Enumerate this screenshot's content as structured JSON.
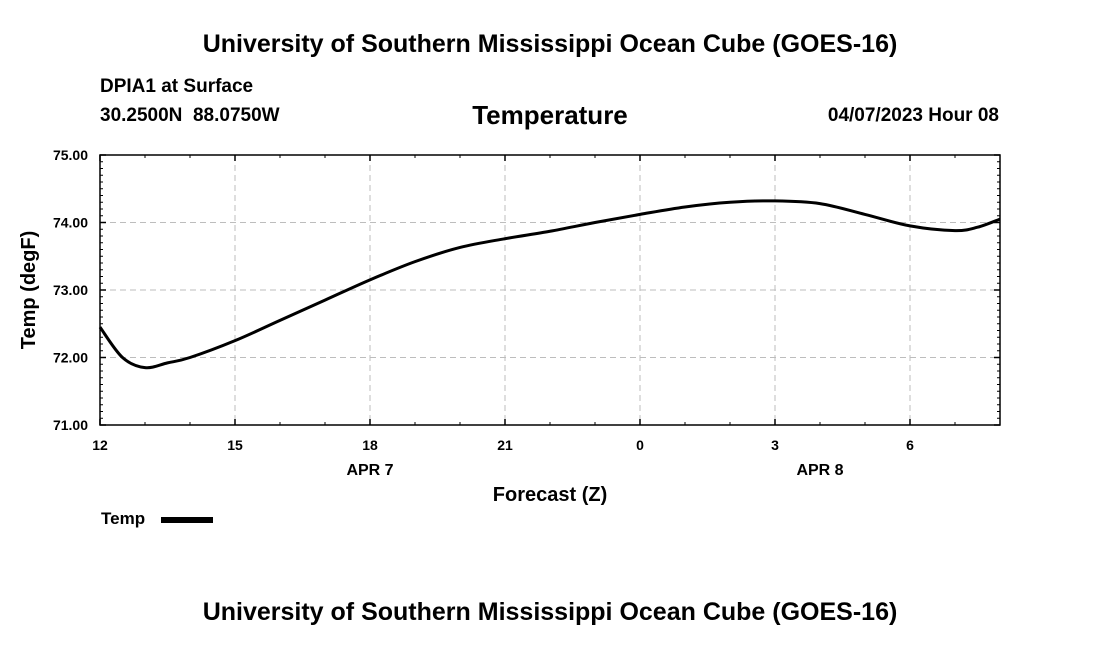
{
  "header": {
    "title": "University of Southern Mississippi Ocean Cube (GOES-16)",
    "station": "DPIA1 at Surface",
    "coordinates": "30.2500N  88.0750W",
    "chart_title": "Temperature",
    "datetime": "04/07/2023 Hour 08"
  },
  "footer": {
    "title": "University of Southern Mississippi Ocean Cube (GOES-16)"
  },
  "legend": {
    "label": "Temp",
    "color": "#000000"
  },
  "chart_data": {
    "type": "line",
    "title": "Temperature",
    "xlabel": "Forecast (Z)",
    "ylabel": "Temp (degF)",
    "x_unit": "hours from 2023-04-07 12Z",
    "xlim": [
      0,
      20
    ],
    "ylim": [
      71.0,
      75.0
    ],
    "grid": true,
    "x_ticks": [
      {
        "x": 0,
        "label": "12"
      },
      {
        "x": 3,
        "label": "15"
      },
      {
        "x": 6,
        "label": "18"
      },
      {
        "x": 9,
        "label": "21"
      },
      {
        "x": 12,
        "label": "0"
      },
      {
        "x": 15,
        "label": "3"
      },
      {
        "x": 18,
        "label": "6"
      }
    ],
    "date_labels": [
      {
        "x": 6,
        "label": "APR 7"
      },
      {
        "x": 16,
        "label": "APR 8"
      }
    ],
    "y_ticks": [
      {
        "y": 71.0,
        "label": "71.00"
      },
      {
        "y": 72.0,
        "label": "72.00"
      },
      {
        "y": 73.0,
        "label": "73.00"
      },
      {
        "y": 74.0,
        "label": "74.00"
      },
      {
        "y": 75.0,
        "label": "75.00"
      }
    ],
    "series": [
      {
        "name": "Temp",
        "color": "#000000",
        "x": [
          0,
          0.5,
          1,
          1.5,
          2,
          3,
          4,
          5,
          6,
          7,
          8,
          9,
          10,
          11,
          12,
          13,
          14,
          15,
          16,
          17,
          18,
          19,
          19.5,
          20
        ],
        "y": [
          72.45,
          72.0,
          71.85,
          71.92,
          72.0,
          72.25,
          72.55,
          72.85,
          73.15,
          73.42,
          73.63,
          73.76,
          73.87,
          74.0,
          74.12,
          74.23,
          74.3,
          74.32,
          74.28,
          74.12,
          73.95,
          73.88,
          73.93,
          74.05
        ]
      }
    ]
  }
}
